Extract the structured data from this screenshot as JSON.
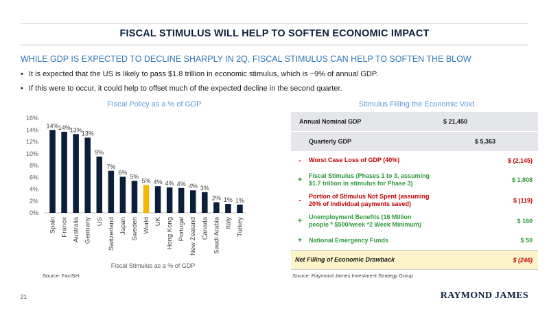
{
  "page": {
    "title": "FISCAL STIMULUS WILL HELP TO SOFTEN ECONOMIC IMPACT",
    "subtitle": "WHILE GDP IS EXPECTED TO DECLINE SHARPLY IN 2Q, FISCAL STIMULUS CAN HELP TO SOFTEN THE BLOW",
    "bullets": [
      "It is expected that the US is likely to pass $1.8 trillion in economic stimulus, which is ~9% of annual GDP.",
      "If this were to occur, it could help to offset much of the expected decline in the second quarter."
    ],
    "page_number": "21",
    "logo": "RAYMOND JAMES"
  },
  "left_panel": {
    "title": "Fiscal Policy as a % of GDP",
    "source": "Source: FactSet"
  },
  "right_panel": {
    "title": "Stimulus Filling the Economic Void",
    "source": "Source: Raymond James Investment Strategy Group",
    "rows": [
      {
        "sign": "",
        "label": "Annual Nominal GDP",
        "value": "$ 21,450"
      },
      {
        "sign": "",
        "label": "Quarterly GDP",
        "value": "$   5,363"
      },
      {
        "sign": "-",
        "label": "Worst Case Loss of GDP (40%)",
        "value": "$  (2,145)"
      },
      {
        "sign": "+",
        "label_lines": [
          "Fiscal Stimulus (Phases 1 to 3, assuming",
          "$1.7 trillion in stimulus for Phase 3)"
        ],
        "value": "$    1,808"
      },
      {
        "sign": "-",
        "label_lines": [
          "Portion of Stimulus Not Spent (assuming",
          "20% of individual payments saved)"
        ],
        "value": "$     (119)"
      },
      {
        "sign": "+",
        "label_lines": [
          "Unemployment Benefits (16 Million",
          "people * $500/week *2 Week Minimum)"
        ],
        "value": "$       160"
      },
      {
        "sign": "+",
        "label": "National Emergency Funds",
        "value": "$         50"
      },
      {
        "sign": "",
        "label": "Net Filling of Economic Drawback",
        "value": "$     (246)"
      }
    ]
  },
  "chart_data": {
    "type": "bar",
    "title": "",
    "xlabel": "Fiscal Stimulus as a % of GDP",
    "ylabel": "",
    "ylim": [
      0,
      16
    ],
    "yticks": [
      "0%",
      "2%",
      "4%",
      "6%",
      "8%",
      "10%",
      "12%",
      "14%",
      "16%"
    ],
    "ytick_values": [
      0,
      2,
      4,
      6,
      8,
      10,
      12,
      14,
      16
    ],
    "grid": false,
    "categories": [
      "Spain",
      "France",
      "Australia",
      "Germany",
      "US",
      "Switzerland",
      "Japan",
      "Sweden",
      "World",
      "UK",
      "Hong Kong",
      "Portugal",
      "New Zealand",
      "Canada",
      "Saudi Arabia",
      "Italy",
      "Turkey"
    ],
    "values": [
      14.0,
      13.7,
      13.3,
      12.7,
      9.5,
      7.1,
      6.1,
      5.4,
      4.7,
      4.5,
      4.3,
      4.2,
      3.8,
      3.5,
      1.8,
      1.5,
      1.4
    ],
    "data_labels": [
      "14%",
      "14%",
      "13%",
      "13%",
      "9%",
      "7%",
      "6%",
      "5%",
      "5%",
      "4%",
      "4%",
      "4%",
      "4%",
      "3%",
      "2%",
      "1%",
      "1%"
    ],
    "bar_color": "#0b1f3a",
    "highlight_category": "World",
    "highlight_color": "#f5b800"
  }
}
